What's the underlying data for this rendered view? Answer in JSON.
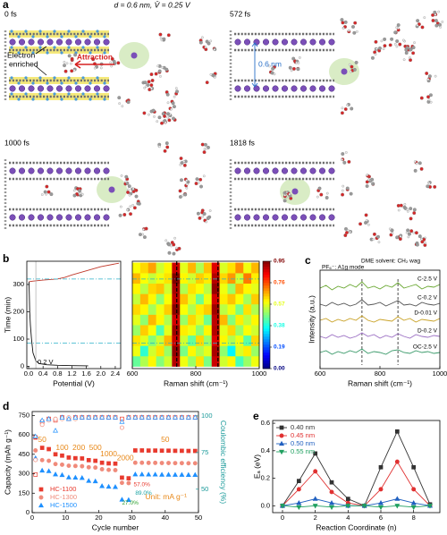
{
  "panel_a": {
    "panel_label": "a",
    "header": "d = 0.6 nm, V̄ = 0.25 V",
    "snapshots": [
      "0 fs",
      "572 fs",
      "1000 fs",
      "1818 fs"
    ],
    "electron_label": [
      "Electron",
      "enriched"
    ],
    "attraction_label": "Attraction",
    "spacing_label": "0.6 nm"
  },
  "chart_data": [
    {
      "type": "line",
      "panel_label": "b",
      "xlabel": "Potential (V)",
      "ylabel": "Time (min)",
      "xlim": [
        -0.05,
        2.55
      ],
      "xticks": [
        {
          "value": 0,
          "label": "0.0"
        },
        0.4,
        0.8,
        1.2,
        1.6,
        {
          "value": 2,
          "label": "2.0"
        },
        2.4
      ],
      "ylim": [
        -8,
        385
      ],
      "yticks": [
        0,
        100,
        200,
        300
      ],
      "series": [
        {
          "color": "#111111",
          "x": [
            1.65,
            1.2,
            0.8,
            0.5,
            0.3,
            0.2,
            0.12,
            0.08,
            0.05,
            0.03,
            0.02,
            0.01
          ],
          "values": [
            2,
            3,
            4,
            6,
            10,
            20,
            50,
            100,
            150,
            200,
            260,
            310
          ]
        },
        {
          "color": "#c0392b",
          "x": [
            0.01,
            0.1,
            0.4,
            0.8,
            1.0,
            1.2,
            1.6,
            2.0,
            2.5
          ],
          "values": [
            310,
            312,
            316,
            320,
            326,
            335,
            350,
            365,
            378
          ]
        }
      ],
      "hlines": [
        85,
        320
      ],
      "vlines": [
        0.2
      ],
      "annotation": "0.2 V"
    },
    {
      "type": "heatmap",
      "xlabel": "Raman shift (cm⁻¹)",
      "xlim": [
        600,
        1000
      ],
      "xticks": [
        600,
        800,
        1000
      ],
      "ylim": [
        -8,
        385
      ],
      "xbins": [
        600,
        625,
        650,
        675,
        700,
        725,
        750,
        775,
        800,
        825,
        850,
        875,
        900,
        925,
        950,
        975,
        1000
      ],
      "ybins": [
        0,
        38,
        76,
        114,
        152,
        190,
        228,
        266,
        304,
        342,
        380
      ],
      "z": [
        [
          0.45,
          0.52,
          0.6,
          0.48,
          0.55,
          0.9,
          0.58,
          0.5,
          0.62,
          0.47,
          0.88,
          0.55,
          0.6,
          0.42,
          0.5,
          0.58
        ],
        [
          0.58,
          0.4,
          0.55,
          0.62,
          0.5,
          0.93,
          0.47,
          0.6,
          0.52,
          0.57,
          0.91,
          0.49,
          0.35,
          0.56,
          0.61,
          0.5
        ],
        [
          0.62,
          0.57,
          0.48,
          0.55,
          0.66,
          0.88,
          0.55,
          0.45,
          0.63,
          0.5,
          0.86,
          0.6,
          0.52,
          0.58,
          0.44,
          0.63
        ],
        [
          0.5,
          0.64,
          0.59,
          0.43,
          0.57,
          0.92,
          0.61,
          0.58,
          0.49,
          0.6,
          0.9,
          0.57,
          0.63,
          0.5,
          0.59,
          0.55
        ],
        [
          0.57,
          0.49,
          0.66,
          0.6,
          0.52,
          0.87,
          0.5,
          0.63,
          0.57,
          0.46,
          0.89,
          0.66,
          0.48,
          0.61,
          0.53,
          0.6
        ],
        [
          0.63,
          0.6,
          0.51,
          0.58,
          0.64,
          0.94,
          0.59,
          0.52,
          0.61,
          0.64,
          0.92,
          0.53,
          0.58,
          0.47,
          0.62,
          0.52
        ],
        [
          0.54,
          0.66,
          0.6,
          0.49,
          0.59,
          0.89,
          0.65,
          0.57,
          0.46,
          0.58,
          0.87,
          0.61,
          0.65,
          0.59,
          0.51,
          0.64
        ],
        [
          0.6,
          0.53,
          0.63,
          0.65,
          0.55,
          0.91,
          0.52,
          0.62,
          0.59,
          0.53,
          0.93,
          0.58,
          0.5,
          0.66,
          0.6,
          0.57
        ],
        [
          0.66,
          0.59,
          0.54,
          0.58,
          0.62,
          0.95,
          0.6,
          0.55,
          0.64,
          0.61,
          0.9,
          0.63,
          0.69,
          0.55,
          0.72,
          0.61
        ],
        [
          0.59,
          0.63,
          0.68,
          0.55,
          0.6,
          0.88,
          0.57,
          0.66,
          0.52,
          0.65,
          0.86,
          0.56,
          0.62,
          0.7,
          0.58,
          0.66
        ]
      ],
      "colormap": "jet",
      "zlim": [
        0,
        0.95
      ],
      "colorbar_ticks": [
        {
          "value": 0,
          "label": "0.00"
        },
        0.19,
        0.38,
        0.57,
        0.76,
        0.95
      ],
      "peak_lines": [
        740,
        870
      ],
      "hlines": [
        85,
        320
      ]
    },
    {
      "type": "line",
      "panel_label": "c",
      "xlabel": "Raman shift (cm⁻¹)",
      "ylabel": "Intensity (a.u.)",
      "xlim": [
        600,
        1000
      ],
      "xticks": [
        600,
        800,
        1000
      ],
      "ylim": [
        0,
        5.5
      ],
      "x": [
        600,
        620,
        640,
        660,
        680,
        700,
        720,
        740,
        760,
        780,
        800,
        820,
        840,
        860,
        880,
        900,
        920,
        940,
        960,
        980,
        1000
      ],
      "series": [
        {
          "name": "C-2.5 V",
          "color": "#6aa832",
          "values": [
            4.5,
            4.65,
            4.4,
            4.6,
            4.5,
            4.7,
            4.55,
            4.85,
            4.5,
            4.6,
            4.45,
            4.65,
            4.55,
            4.8,
            4.5,
            4.6,
            4.7,
            4.45,
            4.6,
            4.55,
            4.7
          ]
        },
        {
          "name": "C-0.2 V",
          "color": "#555555",
          "values": [
            3.6,
            3.5,
            3.7,
            3.55,
            3.65,
            3.5,
            3.6,
            3.85,
            3.55,
            3.6,
            3.7,
            3.5,
            3.65,
            3.8,
            3.55,
            3.6,
            3.5,
            3.7,
            3.6,
            3.55,
            3.65
          ]
        },
        {
          "name": "D-0.01 V",
          "color": "#c9a227",
          "values": [
            2.7,
            2.8,
            2.6,
            2.75,
            2.65,
            2.8,
            2.7,
            2.95,
            2.7,
            2.6,
            2.75,
            2.7,
            2.65,
            2.9,
            2.7,
            2.8,
            2.6,
            2.75,
            2.7,
            2.65,
            2.8
          ]
        },
        {
          "name": "D-0.2 V",
          "color": "#9b6fc3",
          "values": [
            1.8,
            1.7,
            1.9,
            1.75,
            1.85,
            1.7,
            1.8,
            2.0,
            1.8,
            1.9,
            1.7,
            1.85,
            1.75,
            1.95,
            1.8,
            1.7,
            1.9,
            1.8,
            1.75,
            1.85,
            1.8
          ]
        },
        {
          "name": "OC-2.5 V",
          "color": "#3a9a6a",
          "values": [
            0.9,
            1.0,
            0.8,
            0.95,
            0.85,
            1.0,
            0.9,
            1.1,
            0.85,
            0.95,
            0.9,
            0.8,
            1.0,
            1.05,
            0.9,
            0.85,
            1.0,
            0.9,
            0.95,
            0.85,
            0.9
          ]
        }
      ],
      "inline_labels": true,
      "dashed_lines": [
        740,
        860
      ],
      "annotations": [
        "PF₆⁻: A1g mode",
        "DME solvent: CH₂ wag"
      ]
    },
    {
      "type": "line",
      "panel_label": "d",
      "xlabel": "Cycle number",
      "ylabel": "Capacity (mAh g⁻¹)",
      "y2label": "Coulombic efficiency (%)",
      "xlim": [
        0,
        50
      ],
      "xticks": [
        0,
        10,
        20,
        30,
        40,
        50
      ],
      "ylim": [
        0,
        780
      ],
      "yticks": [
        0,
        150,
        300,
        450,
        600,
        750
      ],
      "y2lim": [
        34,
        103
      ],
      "y2ticks": [
        50,
        75,
        100
      ],
      "y2color": "#1a9a9a",
      "connect": false,
      "legend": "lower left",
      "x": [
        1,
        3,
        5,
        7,
        9,
        11,
        13,
        15,
        17,
        19,
        21,
        23,
        25,
        27,
        29,
        31,
        33,
        35,
        37,
        39,
        41,
        43,
        45,
        47,
        49
      ],
      "series": [
        {
          "name": "HC-1100",
          "color": "#e83a2e",
          "marker": "square",
          "values": [
            580,
            500,
            490,
            450,
            440,
            425,
            420,
            418,
            405,
            400,
            385,
            380,
            378,
            270,
            265,
            480,
            480,
            479,
            479,
            478,
            478,
            477,
            477,
            476,
            476
          ]
        },
        {
          "name": "HC-1300",
          "color": "#f08a7a",
          "marker": "circle",
          "values": [
            480,
            405,
            400,
            375,
            370,
            362,
            360,
            358,
            350,
            348,
            335,
            330,
            328,
            230,
            228,
            385,
            385,
            384,
            384,
            383,
            383,
            382,
            382,
            381,
            381
          ]
        },
        {
          "name": "HC-1500",
          "color": "#1e90ff",
          "marker": "triangle",
          "values": [
            420,
            325,
            320,
            295,
            290,
            272,
            270,
            268,
            245,
            242,
            205,
            200,
            198,
            100,
            98,
            295,
            295,
            294,
            294,
            293,
            293,
            292,
            292,
            291,
            291
          ]
        },
        {
          "color": "#e83a2e",
          "marker": "square",
          "filled": false,
          "axis": "y2",
          "values": [
            60,
            96,
            98,
            97,
            99,
            98,
            99,
            99,
            99,
            99,
            99,
            99,
            99,
            98,
            99,
            99,
            99,
            99,
            99,
            99,
            99,
            99,
            99,
            99,
            99
          ]
        },
        {
          "color": "#f08a7a",
          "marker": "circle",
          "filled": false,
          "axis": "y2",
          "values": [
            70,
            94,
            97,
            98,
            98,
            99,
            98,
            99,
            99,
            99,
            99,
            99,
            99,
            92,
            99,
            99,
            99,
            99,
            99,
            99,
            99,
            99,
            99,
            99,
            99
          ]
        },
        {
          "color": "#1e90ff",
          "marker": "triangle",
          "filled": false,
          "axis": "y2",
          "values": [
            86,
            97,
            98,
            90,
            99,
            98,
            99,
            99,
            99,
            99,
            99,
            99,
            99,
            96,
            99,
            99,
            99,
            99,
            99,
            99,
            99,
            99,
            99,
            99,
            99
          ]
        }
      ],
      "rate_labels": [
        50,
        100,
        200,
        500,
        1000,
        2000,
        50
      ],
      "unit_label": "Unit: mA g⁻¹",
      "retention": [
        57.0,
        89.0,
        27.0
      ],
      "retention_labels": [
        "57.0%",
        "89.0%",
        "27.0%"
      ]
    },
    {
      "type": "line",
      "panel_label": "e",
      "xlabel": "Reaction Coordinate (n)",
      "ylabel": "Eₐ (eV)",
      "xlim": [
        -0.6,
        9.6
      ],
      "xticks": [
        0,
        2,
        4,
        6,
        8
      ],
      "ylim": [
        -0.05,
        0.62
      ],
      "yticks": [
        {
          "value": 0,
          "label": "0.0"
        },
        0.2,
        0.4,
        0.6
      ],
      "legend": "upper left",
      "x": [
        0,
        1,
        2,
        3,
        4,
        5,
        6,
        7,
        8,
        9
      ],
      "series": [
        {
          "name": "0.40 nm",
          "color": "#333333",
          "marker": "square",
          "values": [
            0,
            0.18,
            0.38,
            0.17,
            0.05,
            0,
            0.28,
            0.54,
            0.28,
            0.01
          ]
        },
        {
          "name": "0.45 nm",
          "color": "#e03030",
          "marker": "circle",
          "values": [
            0,
            0.12,
            0.25,
            0.1,
            0.02,
            0,
            0.12,
            0.32,
            0.12,
            0
          ]
        },
        {
          "name": "0.50 nm",
          "color": "#2060c0",
          "marker": "triangle",
          "values": [
            0,
            0.02,
            0.05,
            0.02,
            0,
            0,
            0.02,
            0.05,
            0.02,
            0
          ]
        },
        {
          "name": "0.55 nm",
          "color": "#20a060",
          "marker": "triangle-down",
          "values": [
            0,
            -0.01,
            0,
            -0.01,
            0,
            0,
            -0.01,
            0,
            -0.01,
            0
          ]
        }
      ]
    }
  ]
}
